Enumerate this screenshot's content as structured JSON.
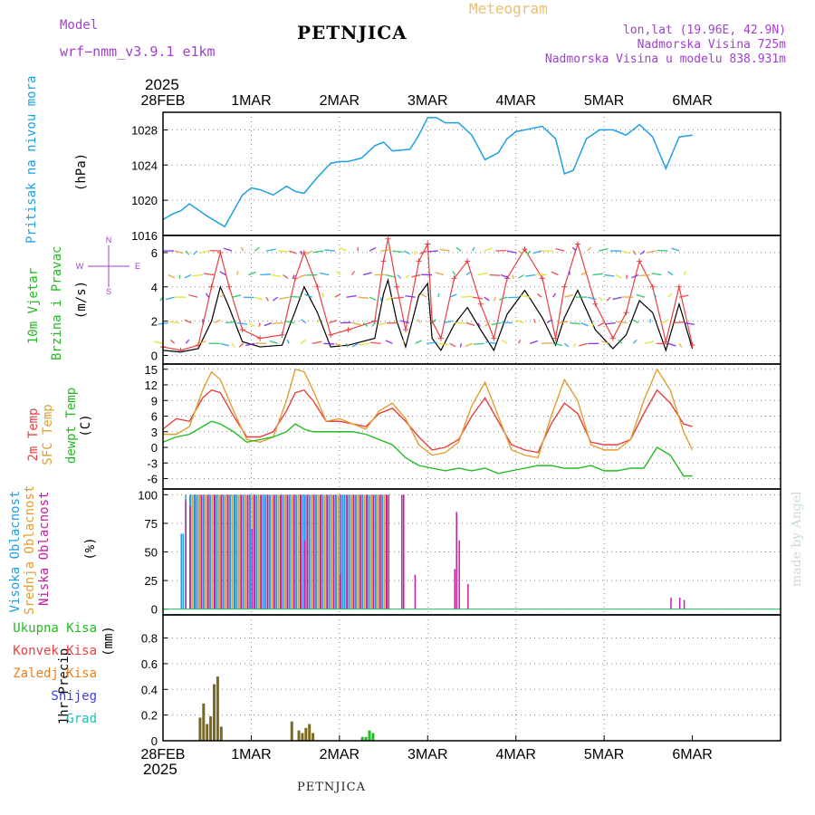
{
  "header": {
    "model_label": "Model",
    "model_name": "wrf−nmm_v3.9.1  e1km",
    "site_name": "PETNJICA",
    "chart_title": "Meteogram",
    "location": "lon,lat (19.96E, 42.9N)",
    "elevation": "Nadmorska Visina 725m",
    "model_elevation": "Nadmorska Visina u modelu 838.931m",
    "year_top": "2025",
    "year_bottom": "2025",
    "footer_site": "PETNJICA",
    "watermark": "made by Angel"
  },
  "colors": {
    "pressure": "#1ea0e6",
    "temp": "#e84040",
    "sfc_temp": "#e0a030",
    "dewpt": "#22bb22",
    "high_cloud": "#1ea0e6",
    "mid_cloud": "#e0a030",
    "low_cloud": "#c020a0",
    "precip_total": "#22bb22",
    "precip_conv": "#e84040",
    "precip_freeze": "#f08020",
    "snow": "#4040e0",
    "hail": "#20c0b0",
    "wind_speed": "#000000",
    "gust": "#e84040"
  },
  "chart_data": [
    {
      "panel": "pressure",
      "type": "line",
      "ylabel_name": "Pritisak na nivou mora",
      "unit": "(hPa)",
      "xlim": [
        0,
        7
      ],
      "ylim": [
        1016,
        1030
      ],
      "yticks": [
        1016,
        1020,
        1024,
        1028
      ],
      "x_tick_labels": [
        "28FEB",
        "1MAR",
        "2MAR",
        "3MAR",
        "4MAR",
        "5MAR",
        "6MAR"
      ],
      "grid": true,
      "series": [
        {
          "x": [
            0,
            0.1,
            0.2,
            0.3,
            0.5,
            0.7,
            0.8,
            0.9,
            1.0,
            1.1,
            1.25,
            1.4,
            1.5,
            1.6,
            1.75,
            1.9,
            2.0,
            2.1,
            2.25,
            2.4,
            2.5,
            2.6,
            2.8,
            2.9,
            3.0,
            3.1,
            3.2,
            3.35,
            3.5,
            3.65,
            3.8,
            3.9,
            4.0,
            4.1,
            4.3,
            4.45,
            4.55,
            4.65,
            4.8,
            4.95,
            5.1,
            5.25,
            5.4,
            5.55,
            5.7,
            5.85,
            6.0
          ],
          "y": [
            1017.8,
            1018.4,
            1018.8,
            1019.6,
            1018.2,
            1017.0,
            1018.8,
            1020.6,
            1021.4,
            1021.2,
            1020.6,
            1021.6,
            1021.0,
            1020.8,
            1022.6,
            1024.2,
            1024.4,
            1024.4,
            1024.8,
            1026.2,
            1026.6,
            1025.6,
            1025.8,
            1027.4,
            1029.4,
            1029.4,
            1028.8,
            1028.8,
            1027.4,
            1024.6,
            1025.4,
            1027.0,
            1027.8,
            1028.0,
            1028.4,
            1027.0,
            1023.0,
            1023.4,
            1027.0,
            1028.0,
            1028.0,
            1027.4,
            1028.6,
            1027.2,
            1023.6,
            1027.2,
            1027.4
          ]
        }
      ]
    },
    {
      "panel": "wind",
      "type": "line",
      "ylabel_name": "10m Vjetar",
      "ylabel_name2": "Brzina i Pravac",
      "unit": "(m/s)",
      "compass": [
        "N",
        "E",
        "S",
        "W"
      ],
      "xlim": [
        0,
        7
      ],
      "ylim": [
        -0.5,
        7
      ],
      "yticks": [
        0,
        2,
        4,
        6
      ],
      "x_tick_labels": [
        "28FEB",
        "1MAR",
        "2MAR",
        "3MAR",
        "4MAR",
        "5MAR",
        "6MAR"
      ],
      "grid": true,
      "series": [
        {
          "role": "speed",
          "x": [
            0,
            0.2,
            0.4,
            0.55,
            0.65,
            0.75,
            0.9,
            1.1,
            1.35,
            1.5,
            1.6,
            1.75,
            1.9,
            2.1,
            2.4,
            2.5,
            2.55,
            2.65,
            2.75,
            2.9,
            3.0,
            3.05,
            3.15,
            3.3,
            3.45,
            3.6,
            3.75,
            3.9,
            4.1,
            4.3,
            4.45,
            4.55,
            4.7,
            4.9,
            5.1,
            5.25,
            5.4,
            5.55,
            5.7,
            5.85,
            6.0
          ],
          "y": [
            0.3,
            0.2,
            0.4,
            2.0,
            4.0,
            2.8,
            0.8,
            0.5,
            0.6,
            2.6,
            4.0,
            2.5,
            0.5,
            0.6,
            1.0,
            3.6,
            4.4,
            2.0,
            0.5,
            3.5,
            4.2,
            1.0,
            0.3,
            1.8,
            2.8,
            1.5,
            0.3,
            2.4,
            3.8,
            2.2,
            0.6,
            2.2,
            3.8,
            1.5,
            0.4,
            1.2,
            3.2,
            2.5,
            0.3,
            3.0,
            0.4
          ]
        },
        {
          "role": "gust",
          "x": [
            0,
            0.2,
            0.4,
            0.55,
            0.65,
            0.75,
            0.9,
            1.1,
            1.35,
            1.5,
            1.6,
            1.75,
            1.9,
            2.1,
            2.4,
            2.5,
            2.55,
            2.65,
            2.75,
            2.9,
            3.0,
            3.05,
            3.15,
            3.3,
            3.45,
            3.6,
            3.75,
            3.9,
            4.1,
            4.3,
            4.45,
            4.55,
            4.7,
            4.9,
            5.1,
            5.25,
            5.4,
            5.55,
            5.7,
            5.85,
            6.0
          ],
          "y": [
            0.5,
            0.3,
            0.6,
            4.0,
            6.0,
            4.0,
            1.5,
            1.0,
            1.2,
            4.5,
            6.0,
            4.0,
            1.2,
            1.5,
            2.0,
            5.5,
            6.8,
            4.0,
            1.5,
            5.5,
            6.5,
            2.0,
            1.0,
            4.5,
            5.5,
            3.0,
            1.0,
            4.5,
            6.2,
            4.5,
            1.0,
            4.0,
            6.5,
            3.0,
            1.0,
            2.5,
            5.5,
            4.0,
            0.8,
            4.0,
            0.6
          ]
        }
      ]
    },
    {
      "panel": "temperature",
      "type": "line",
      "ylabel_name": "2m Temp",
      "ylabel_name2": "SFC Temp",
      "ylabel_name3": "dewpt Temp",
      "unit": "(C)",
      "xlim": [
        0,
        7
      ],
      "ylim": [
        -8,
        16
      ],
      "yticks": [
        -6,
        -3,
        0,
        3,
        6,
        9,
        12,
        15
      ],
      "x_tick_labels": [
        "28FEB",
        "1MAR",
        "2MAR",
        "3MAR",
        "4MAR",
        "5MAR",
        "6MAR"
      ],
      "grid": true,
      "series": [
        {
          "role": "temp2m",
          "x": [
            0,
            0.15,
            0.3,
            0.45,
            0.55,
            0.65,
            0.8,
            0.95,
            1.1,
            1.25,
            1.4,
            1.5,
            1.6,
            1.7,
            1.85,
            2.0,
            2.15,
            2.3,
            2.45,
            2.6,
            2.75,
            2.9,
            3.05,
            3.2,
            3.35,
            3.5,
            3.65,
            3.8,
            3.95,
            4.1,
            4.25,
            4.4,
            4.55,
            4.7,
            4.85,
            5.0,
            5.15,
            5.3,
            5.45,
            5.6,
            5.75,
            5.9,
            6.0
          ],
          "y": [
            3.5,
            5.5,
            5.0,
            9.5,
            11.0,
            10.5,
            6.0,
            2.0,
            2.0,
            3.0,
            7.0,
            10.5,
            11.0,
            9.0,
            5.0,
            5.0,
            4.5,
            4.0,
            6.5,
            7.5,
            5.0,
            2.0,
            -0.5,
            0.0,
            1.5,
            6.0,
            9.5,
            5.0,
            0.5,
            -0.5,
            -1.0,
            4.5,
            8.5,
            6.5,
            1.0,
            0.5,
            0.5,
            1.5,
            6.5,
            11.0,
            8.5,
            4.5,
            4.0
          ]
        },
        {
          "role": "sfc",
          "x": [
            0,
            0.15,
            0.3,
            0.45,
            0.55,
            0.65,
            0.8,
            0.95,
            1.1,
            1.25,
            1.4,
            1.5,
            1.6,
            1.7,
            1.85,
            2.0,
            2.15,
            2.3,
            2.45,
            2.6,
            2.75,
            2.9,
            3.05,
            3.2,
            3.35,
            3.5,
            3.65,
            3.8,
            3.95,
            4.1,
            4.25,
            4.4,
            4.55,
            4.7,
            4.85,
            5.0,
            5.15,
            5.3,
            5.45,
            5.6,
            5.75,
            5.9,
            6.0
          ],
          "y": [
            2.5,
            2.5,
            4.0,
            11.0,
            14.5,
            13.0,
            7.0,
            1.5,
            1.0,
            2.0,
            9.0,
            15.0,
            14.5,
            11.0,
            5.0,
            5.5,
            4.5,
            3.5,
            7.0,
            8.5,
            5.5,
            0.5,
            -1.5,
            -1.0,
            1.0,
            8.0,
            12.5,
            6.0,
            -0.5,
            -1.5,
            -2.0,
            6.0,
            13.0,
            9.0,
            0.5,
            -0.5,
            -0.5,
            1.5,
            9.0,
            15.0,
            11.0,
            3.0,
            -0.5
          ]
        },
        {
          "role": "dewpt",
          "x": [
            0,
            0.15,
            0.3,
            0.45,
            0.55,
            0.65,
            0.8,
            0.95,
            1.1,
            1.25,
            1.4,
            1.5,
            1.6,
            1.7,
            1.85,
            2.0,
            2.15,
            2.3,
            2.45,
            2.6,
            2.75,
            2.9,
            3.05,
            3.2,
            3.35,
            3.5,
            3.65,
            3.8,
            3.95,
            4.1,
            4.25,
            4.4,
            4.55,
            4.7,
            4.85,
            5.0,
            5.15,
            5.3,
            5.45,
            5.6,
            5.75,
            5.9,
            6.0
          ],
          "y": [
            1.0,
            2.0,
            2.5,
            4.0,
            5.0,
            4.5,
            3.0,
            1.0,
            1.5,
            2.0,
            3.0,
            4.5,
            3.5,
            3.0,
            3.0,
            3.0,
            3.0,
            2.5,
            1.5,
            0.5,
            -2.0,
            -3.5,
            -4.0,
            -4.5,
            -4.0,
            -4.5,
            -4.0,
            -5.0,
            -4.5,
            -4.0,
            -3.5,
            -3.5,
            -4.0,
            -4.0,
            -3.5,
            -4.5,
            -4.5,
            -4.0,
            -4.0,
            0.0,
            -1.5,
            -5.5,
            -5.5
          ]
        }
      ]
    },
    {
      "panel": "cloud",
      "type": "bar",
      "ylabel_name": "Visoka Oblacnost",
      "ylabel_name2": "Srednja Oblacnost",
      "ylabel_name3": "Niska Oblacnost",
      "unit": "(%)",
      "xlim": [
        0,
        7
      ],
      "ylim": [
        -5,
        105
      ],
      "yticks": [
        0,
        25,
        50,
        75,
        100
      ],
      "x_tick_labels": [
        "28FEB",
        "1MAR",
        "2MAR",
        "3MAR",
        "4MAR",
        "5MAR",
        "6MAR"
      ],
      "grid": true,
      "note": "dense cloud cover 0.2–2.55 days; sparse low cloud afterwards",
      "series": [
        {
          "role": "high",
          "x": [
            0.2,
            0.22,
            0.25,
            0.3,
            0.35,
            0.6,
            0.8,
            1.15,
            1.6,
            1.95,
            2.0,
            2.05
          ],
          "y": [
            66,
            66,
            100,
            100,
            100,
            100,
            100,
            100,
            100,
            100,
            100,
            100
          ]
        },
        {
          "role": "low",
          "x": [
            0.25,
            0.3,
            1.0,
            1.6,
            2.0,
            2.55,
            2.7,
            2.72,
            2.85,
            3.3,
            3.32,
            3.35,
            3.45,
            5.75,
            5.85,
            5.9
          ],
          "y": [
            95,
            90,
            70,
            60,
            30,
            100,
            100,
            100,
            30,
            35,
            85,
            60,
            22,
            10,
            10,
            8
          ]
        }
      ]
    },
    {
      "panel": "precip",
      "type": "bar",
      "ylabel_name": "1hr Precip",
      "unit": "(mm)",
      "legend": [
        "Ukupna Kisa",
        "Konvek.Kisa",
        "Zaledj.Kisa",
        "Snijeg",
        "Grad"
      ],
      "xlim": [
        0,
        7
      ],
      "ylim": [
        0,
        0.98
      ],
      "yticks": [
        0,
        0.2,
        0.4,
        0.6,
        0.8
      ],
      "x_tick_labels": [
        "28FEB",
        "1MAR",
        "2MAR",
        "3MAR",
        "4MAR",
        "5MAR",
        "6MAR"
      ],
      "grid": true,
      "series": [
        {
          "role": "rain_convective",
          "x": [
            0.42,
            0.46,
            0.5,
            0.54,
            0.58,
            0.62,
            0.66,
            1.46,
            1.54,
            1.58,
            1.62,
            1.66,
            1.7
          ],
          "y": [
            0.18,
            0.29,
            0.13,
            0.19,
            0.44,
            0.5,
            0.11,
            0.15,
            0.08,
            0.06,
            0.1,
            0.13,
            0.06
          ]
        },
        {
          "role": "rain_total",
          "x": [
            2.26,
            2.3,
            2.34,
            2.38
          ],
          "y": [
            0.03,
            0.03,
            0.08,
            0.06
          ]
        }
      ]
    }
  ]
}
